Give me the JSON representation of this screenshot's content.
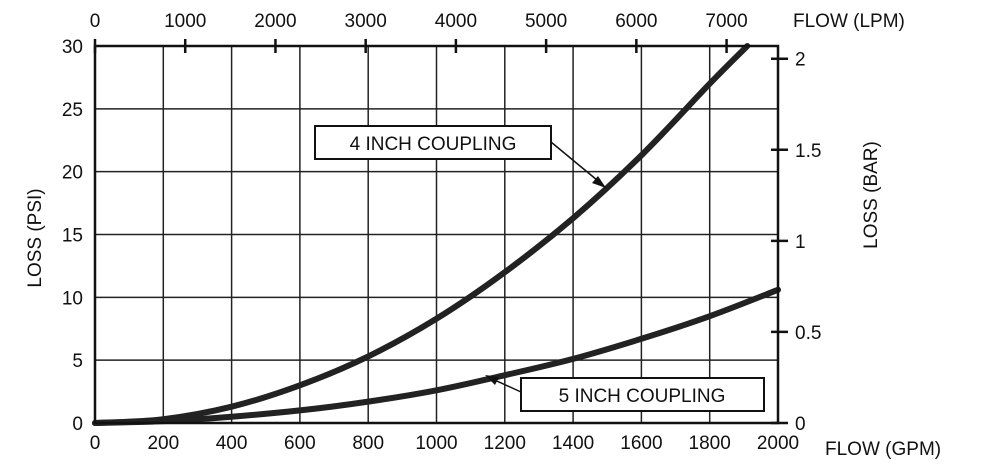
{
  "chart_data": {
    "type": "line",
    "x_bottom": {
      "label": "FLOW (GPM)",
      "range": [
        0,
        2000
      ],
      "ticks": [
        0,
        200,
        400,
        600,
        800,
        1000,
        1200,
        1400,
        1600,
        1800,
        2000
      ]
    },
    "x_top": {
      "label": "FLOW (LPM)",
      "range": [
        0,
        7570
      ],
      "ticks": [
        0,
        1000,
        2000,
        3000,
        4000,
        5000,
        6000,
        7000
      ]
    },
    "y_left": {
      "label": "LOSS (PSI)",
      "range": [
        0,
        30
      ],
      "ticks": [
        0,
        5,
        10,
        15,
        20,
        25,
        30
      ]
    },
    "y_right": {
      "label": "LOSS (BAR)",
      "range": [
        0,
        2.07
      ],
      "ticks": [
        0,
        0.5,
        1,
        1.5,
        2
      ],
      "tick_labels": [
        "0",
        "0.5",
        "1",
        "1.5",
        "2"
      ]
    },
    "grid": true,
    "series": [
      {
        "name": "4 INCH COUPLING",
        "x": [
          0,
          200,
          400,
          600,
          800,
          1000,
          1200,
          1400,
          1600,
          1800,
          1910
        ],
        "y": [
          0,
          0.3,
          1.3,
          3.0,
          5.3,
          8.3,
          12.0,
          16.3,
          21.3,
          27.0,
          30.0
        ]
      },
      {
        "name": "5 INCH COUPLING",
        "x": [
          0,
          200,
          400,
          600,
          800,
          1000,
          1200,
          1400,
          1600,
          1800,
          2000
        ],
        "y": [
          0,
          0.15,
          0.5,
          1.0,
          1.7,
          2.6,
          3.8,
          5.1,
          6.7,
          8.5,
          10.6
        ]
      }
    ]
  }
}
